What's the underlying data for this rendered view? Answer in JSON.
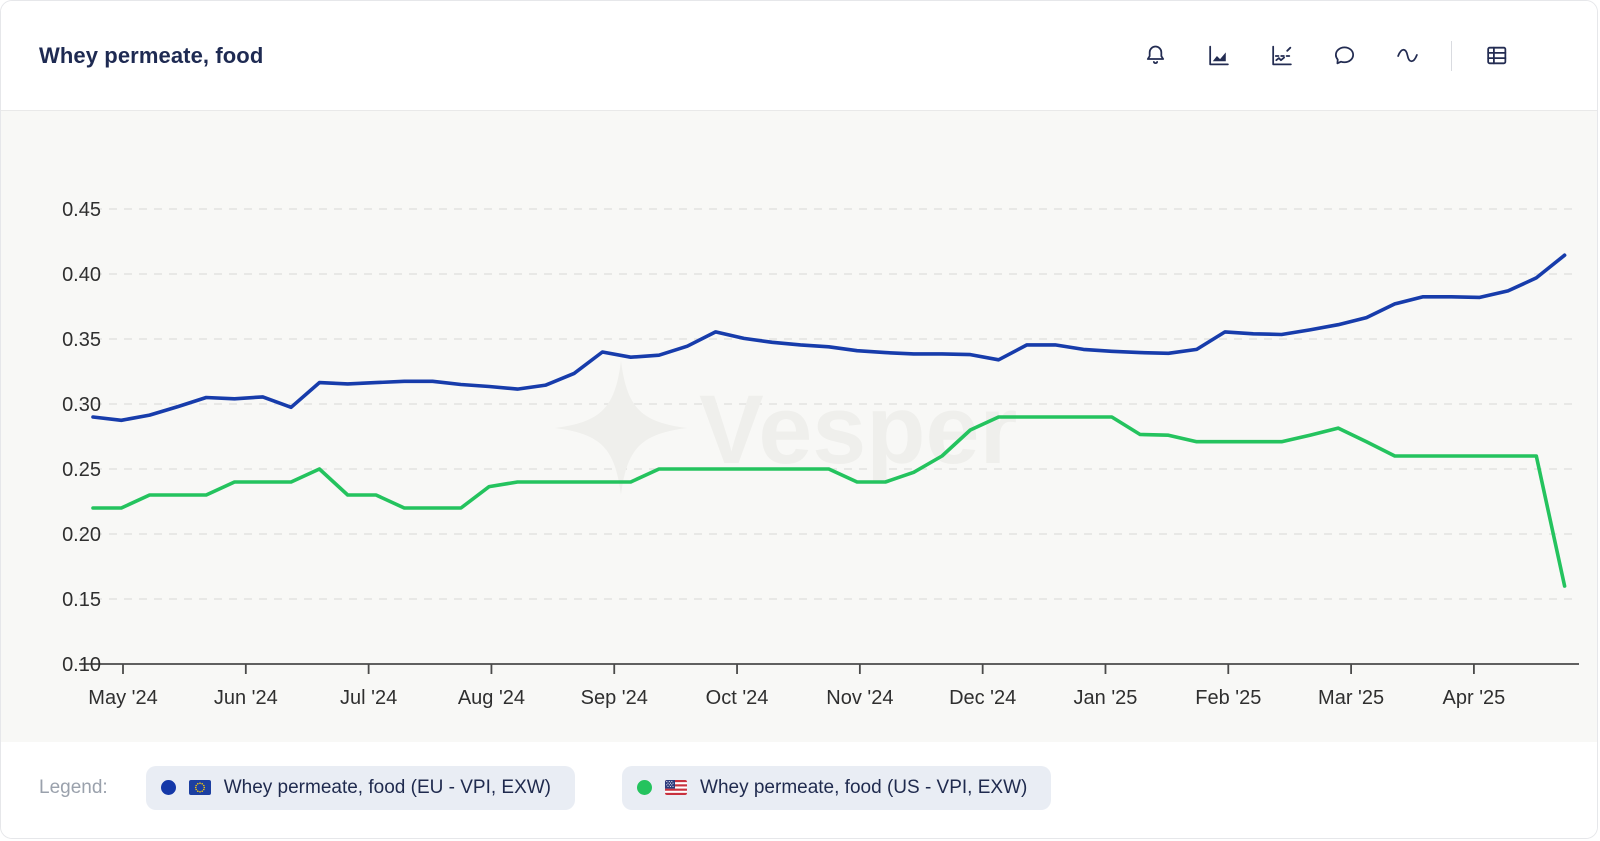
{
  "header": {
    "title": "Whey permeate, food",
    "toolbar": [
      {
        "name": "alert-bell-icon"
      },
      {
        "name": "area-chart-icon"
      },
      {
        "name": "forecast-chart-icon"
      },
      {
        "name": "comment-icon"
      },
      {
        "name": "seasonality-wave-icon"
      },
      {
        "name": "data-table-icon"
      }
    ]
  },
  "watermark": "Vesper",
  "chart_data": {
    "type": "line",
    "title": "Whey permeate, food",
    "xlabel": "",
    "ylabel": "",
    "ylim": [
      0.1,
      0.45
    ],
    "y_ticks": [
      "0.45",
      "0.40",
      "0.35",
      "0.30",
      "0.25",
      "0.20",
      "0.15",
      "0.10"
    ],
    "y_tick_values": [
      0.45,
      0.4,
      0.35,
      0.3,
      0.25,
      0.2,
      0.15,
      0.1
    ],
    "x_tick_labels": [
      "May '24",
      "Jun '24",
      "Jul '24",
      "Aug '24",
      "Sep '24",
      "Oct '24",
      "Nov '24",
      "Dec '24",
      "Jan '25",
      "Feb '25",
      "Mar '25",
      "Apr '25"
    ],
    "grid": "dashed-horizontal",
    "legend_position": "bottom",
    "series": [
      {
        "name": "Whey permeate, food (EU - VPI, EXW)",
        "color": "#173cab",
        "values": [
          0.29,
          0.2875,
          0.2915,
          0.298,
          0.305,
          0.304,
          0.3055,
          0.2975,
          0.3165,
          0.3155,
          0.3165,
          0.3175,
          0.3175,
          0.315,
          0.3135,
          0.3115,
          0.3145,
          0.3235,
          0.34,
          0.336,
          0.3375,
          0.3445,
          0.3555,
          0.3505,
          0.3475,
          0.3455,
          0.344,
          0.341,
          0.3395,
          0.3385,
          0.3385,
          0.338,
          0.334,
          0.3455,
          0.3455,
          0.342,
          0.3405,
          0.3395,
          0.339,
          0.342,
          0.3555,
          0.354,
          0.3535,
          0.357,
          0.361,
          0.3665,
          0.377,
          0.3825,
          0.3825,
          0.382,
          0.387,
          0.397,
          0.4145
        ]
      },
      {
        "name": "Whey permeate, food (US - VPI, EXW)",
        "color": "#24c35e",
        "values": [
          0.22,
          0.22,
          0.23,
          0.23,
          0.23,
          0.24,
          0.24,
          0.24,
          0.25,
          0.23,
          0.23,
          0.22,
          0.22,
          0.22,
          0.2365,
          0.24,
          0.24,
          0.24,
          0.24,
          0.24,
          0.25,
          0.25,
          0.25,
          0.25,
          0.25,
          0.25,
          0.25,
          0.24,
          0.24,
          0.2475,
          0.26,
          0.28,
          0.29,
          0.29,
          0.29,
          0.29,
          0.29,
          0.2765,
          0.276,
          0.271,
          0.271,
          0.271,
          0.271,
          0.276,
          0.2815,
          0.271,
          0.26,
          0.26,
          0.26,
          0.26,
          0.26,
          0.26,
          0.16
        ]
      }
    ]
  },
  "legend": {
    "label": "Legend:",
    "items": [
      {
        "flag": "eu",
        "dot_color": "#1438a8",
        "text": "Whey permeate, food (EU - VPI, EXW)"
      },
      {
        "flag": "us",
        "dot_color": "#24c35e",
        "text": "Whey permeate, food (US - VPI, EXW)"
      }
    ]
  },
  "colors": {
    "chart_background": "#f8f8f6",
    "grid_line": "#e2e2e0",
    "axis_line": "#4a4a4a",
    "tick_text": "#2f2f2f",
    "watermark": "#efefec",
    "eu_line": "#173cab",
    "us_line": "#24c35e",
    "navy": "#232c52"
  }
}
